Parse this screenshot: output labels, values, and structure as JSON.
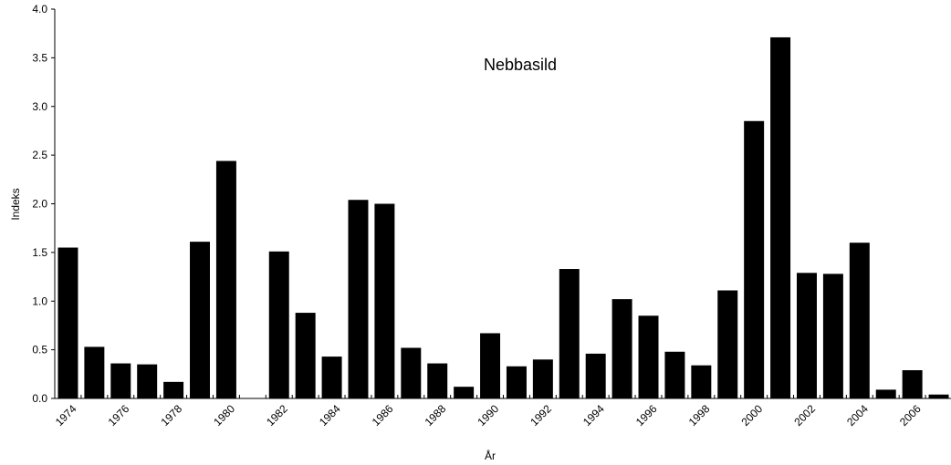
{
  "chart_data": {
    "type": "bar",
    "title": "Nebbasild",
    "xlabel": "År",
    "ylabel": "Indeks",
    "ylim": [
      0,
      4.0
    ],
    "yticks": [
      "0.0",
      "0.5",
      "1.0",
      "1.5",
      "2.0",
      "2.5",
      "3.0",
      "3.5",
      "4.0"
    ],
    "categories": [
      "1974",
      "1975",
      "1976",
      "1977",
      "1978",
      "1979",
      "1980",
      "1981",
      "1982",
      "1983",
      "1984",
      "1985",
      "1986",
      "1987",
      "1988",
      "1989",
      "1990",
      "1991",
      "1992",
      "1993",
      "1994",
      "1995",
      "1996",
      "1997",
      "1998",
      "1999",
      "2000",
      "2001",
      "2002",
      "2003",
      "2004",
      "2005",
      "2006",
      "2007"
    ],
    "xtick_labels": [
      "1974",
      "1976",
      "1978",
      "1980",
      "1982",
      "1984",
      "1986",
      "1988",
      "1990",
      "1992",
      "1994",
      "1996",
      "1998",
      "2000",
      "2002",
      "2004",
      "2006"
    ],
    "values": [
      1.55,
      0.53,
      0.36,
      0.35,
      0.17,
      1.61,
      2.44,
      null,
      1.51,
      0.88,
      0.43,
      2.04,
      2.0,
      0.52,
      0.36,
      0.12,
      0.67,
      0.33,
      0.4,
      1.33,
      0.46,
      1.02,
      0.85,
      0.48,
      0.34,
      1.11,
      2.85,
      3.71,
      1.29,
      1.28,
      1.6,
      0.09,
      0.29,
      0.04
    ],
    "bar_color": "#000000",
    "grid": false,
    "legend": "none"
  }
}
